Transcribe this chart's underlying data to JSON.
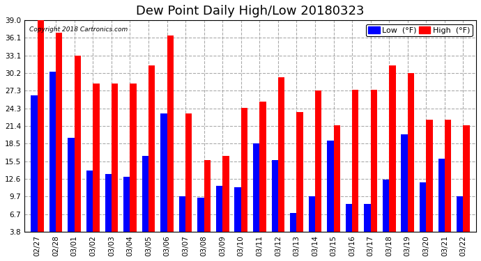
{
  "title": "Dew Point Daily High/Low 20180323",
  "copyright": "Copyright 2018 Cartronics.com",
  "categories": [
    "02/27",
    "02/28",
    "03/01",
    "03/02",
    "03/03",
    "03/04",
    "03/05",
    "03/06",
    "03/07",
    "03/08",
    "03/09",
    "03/10",
    "03/11",
    "03/12",
    "03/13",
    "03/14",
    "03/15",
    "03/16",
    "03/17",
    "03/18",
    "03/19",
    "03/20",
    "03/21",
    "03/22"
  ],
  "high_values": [
    39.0,
    37.0,
    33.1,
    28.5,
    28.5,
    28.5,
    31.5,
    36.5,
    23.5,
    15.8,
    16.5,
    24.5,
    25.5,
    29.5,
    23.8,
    27.3,
    21.5,
    27.5,
    27.5,
    31.5,
    30.2,
    22.5,
    22.5,
    21.5
  ],
  "low_values": [
    26.5,
    30.5,
    19.5,
    14.0,
    13.5,
    13.0,
    16.5,
    23.5,
    9.7,
    9.5,
    11.5,
    11.2,
    18.5,
    15.8,
    7.0,
    9.7,
    19.0,
    8.5,
    8.5,
    12.5,
    20.0,
    12.0,
    16.0,
    9.7
  ],
  "high_color": "#ff0000",
  "low_color": "#0000ff",
  "bg_color": "#ffffff",
  "grid_color": "#aaaaaa",
  "yticks": [
    3.8,
    6.7,
    9.7,
    12.6,
    15.5,
    18.5,
    21.4,
    24.3,
    27.3,
    30.2,
    33.1,
    36.1,
    39.0
  ],
  "ymin": 3.8,
  "ymax": 39.0,
  "bar_width": 0.35,
  "title_fontsize": 13,
  "tick_fontsize": 7.5,
  "legend_fontsize": 8
}
